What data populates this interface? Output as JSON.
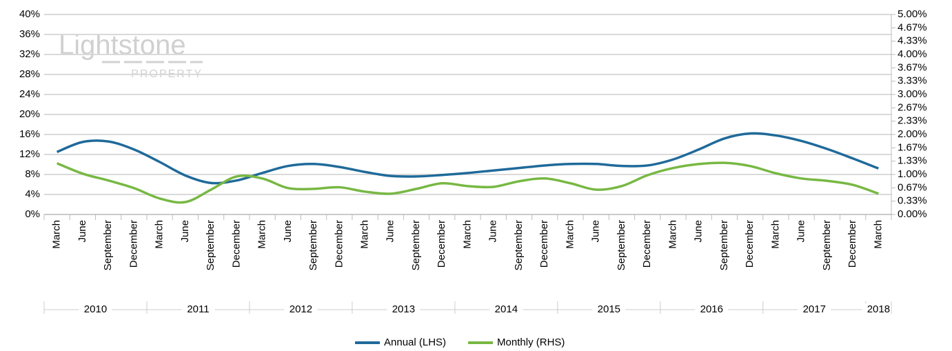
{
  "chart_data": {
    "type": "line",
    "watermark": "Lightstone",
    "watermark_subtitle": "PROPERTY",
    "categories": [
      "March",
      "June",
      "September",
      "December",
      "March",
      "June",
      "September",
      "December",
      "March",
      "June",
      "September",
      "December",
      "March",
      "June",
      "September",
      "December",
      "March",
      "June",
      "September",
      "December",
      "March",
      "June",
      "September",
      "December",
      "March",
      "June",
      "September",
      "December",
      "March",
      "June",
      "September",
      "December",
      "March"
    ],
    "category_groups": [
      "2010",
      "2011",
      "2012",
      "2013",
      "2014",
      "2015",
      "2016",
      "2017",
      "2018"
    ],
    "series": [
      {
        "name": "Annual (LHS)",
        "color": "#1f6a9a",
        "axis": "y",
        "values": [
          12.5,
          14.5,
          14.6,
          13.0,
          10.5,
          7.8,
          6.3,
          6.8,
          8.3,
          9.7,
          10.1,
          9.5,
          8.5,
          7.7,
          7.6,
          7.9,
          8.3,
          8.8,
          9.3,
          9.8,
          10.1,
          10.1,
          9.7,
          9.8,
          11.0,
          13.0,
          15.2,
          16.2,
          15.8,
          14.7,
          13.1,
          11.2,
          9.2
        ]
      },
      {
        "name": "Monthly (RHS)",
        "color": "#77b843",
        "axis": "y2",
        "values": [
          1.28,
          1.02,
          0.85,
          0.66,
          0.4,
          0.31,
          0.62,
          0.95,
          0.9,
          0.66,
          0.64,
          0.68,
          0.57,
          0.52,
          0.64,
          0.78,
          0.71,
          0.69,
          0.83,
          0.9,
          0.78,
          0.62,
          0.71,
          0.98,
          1.16,
          1.26,
          1.29,
          1.21,
          1.03,
          0.9,
          0.84,
          0.74,
          0.52
        ]
      }
    ],
    "ylim": [
      0,
      40
    ],
    "yticks": [
      {
        "value": 0,
        "label": "0%"
      },
      {
        "value": 4,
        "label": "4%"
      },
      {
        "value": 8,
        "label": "8%"
      },
      {
        "value": 12,
        "label": "12%"
      },
      {
        "value": 16,
        "label": "16%"
      },
      {
        "value": 20,
        "label": "20%"
      },
      {
        "value": 24,
        "label": "24%"
      },
      {
        "value": 28,
        "label": "28%"
      },
      {
        "value": 32,
        "label": "32%"
      },
      {
        "value": 36,
        "label": "36%"
      },
      {
        "value": 40,
        "label": "40%"
      }
    ],
    "y2lim": [
      0,
      5
    ],
    "y2ticks": [
      {
        "value": 0,
        "label": "0.00%"
      },
      {
        "value": 0.3333,
        "label": "0.33%"
      },
      {
        "value": 0.6667,
        "label": "0.67%"
      },
      {
        "value": 1,
        "label": "1.00%"
      },
      {
        "value": 1.3333,
        "label": "1.33%"
      },
      {
        "value": 1.6667,
        "label": "1.67%"
      },
      {
        "value": 2,
        "label": "2.00%"
      },
      {
        "value": 2.3333,
        "label": "2.33%"
      },
      {
        "value": 2.6667,
        "label": "2.67%"
      },
      {
        "value": 3,
        "label": "3.00%"
      },
      {
        "value": 3.3333,
        "label": "3.33%"
      },
      {
        "value": 3.6667,
        "label": "3.67%"
      },
      {
        "value": 4,
        "label": "4.00%"
      },
      {
        "value": 4.3333,
        "label": "4.33%"
      },
      {
        "value": 4.6667,
        "label": "4.67%"
      },
      {
        "value": 5,
        "label": "5.00%"
      }
    ],
    "grid": true,
    "legend": "bottom"
  }
}
